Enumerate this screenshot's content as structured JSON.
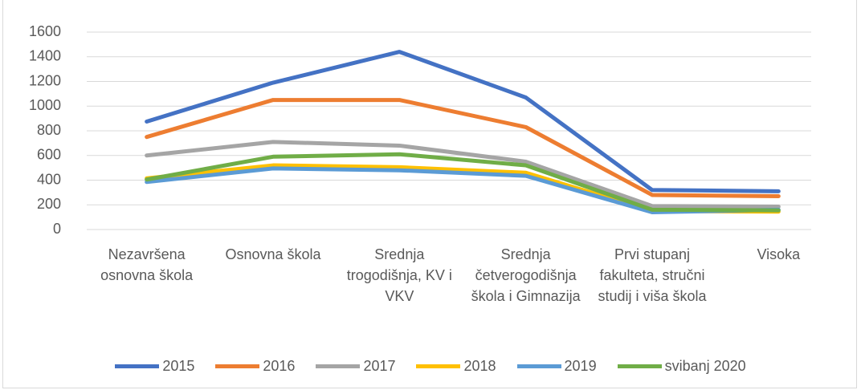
{
  "chart_data": {
    "type": "line",
    "categories": [
      "Nezavršena osnovna škola",
      "Osnovna škola",
      "Srednja trogodišnja, KV i VKV",
      "Srednja četverogodišnja škola i Gimnazija",
      "Prvi stupanj fakulteta, stručni studij i viša škola",
      "Visoka"
    ],
    "series": [
      {
        "name": "2015",
        "color": "#4472c4",
        "values": [
          875,
          1190,
          1440,
          1070,
          320,
          310
        ]
      },
      {
        "name": "2016",
        "color": "#ed7d31",
        "values": [
          750,
          1050,
          1050,
          830,
          280,
          270
        ]
      },
      {
        "name": "2017",
        "color": "#a5a5a5",
        "values": [
          600,
          710,
          680,
          550,
          190,
          185
        ]
      },
      {
        "name": "2018",
        "color": "#ffc000",
        "values": [
          415,
          520,
          505,
          460,
          150,
          145
        ]
      },
      {
        "name": "2019",
        "color": "#5b9bd5",
        "values": [
          385,
          495,
          480,
          435,
          140,
          160
        ]
      },
      {
        "name": "svibanj 2020",
        "color": "#70ad47",
        "values": [
          405,
          590,
          610,
          520,
          160,
          155
        ]
      }
    ],
    "ylim": [
      0,
      1600
    ],
    "yticks": [
      0,
      200,
      400,
      600,
      800,
      1000,
      1200,
      1400,
      1600
    ],
    "grid": true,
    "legend": "bottom"
  }
}
